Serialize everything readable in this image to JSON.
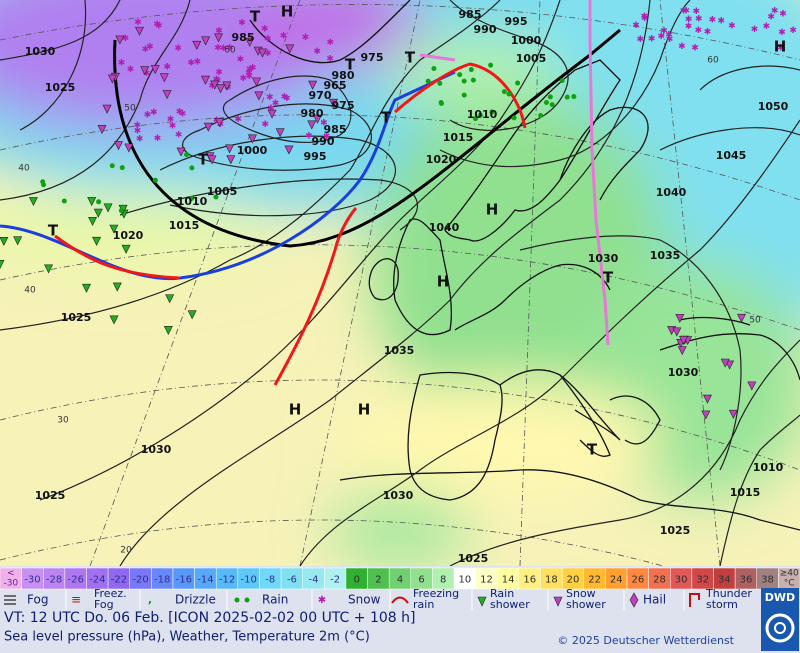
{
  "map": {
    "isobar_labels": [
      1030,
      1025,
      985,
      975,
      980,
      965,
      970,
      975,
      980,
      985,
      990,
      995,
      1000,
      1005,
      1010,
      1015,
      1020,
      1025,
      1030,
      1025,
      985,
      995,
      990,
      1000,
      1005,
      1010,
      1015,
      1020,
      1040,
      1035,
      1030,
      1025,
      1025,
      1015,
      1010,
      1030,
      1030,
      1035,
      1040,
      1045,
      1050
    ],
    "pressure_systems": [
      "T",
      "H",
      "H",
      "T",
      "T",
      "T",
      "T",
      "H",
      "H",
      "T",
      "T",
      "H",
      "H",
      "T"
    ],
    "grid_labels": [
      60,
      50,
      40,
      40,
      30,
      20,
      60,
      50
    ]
  },
  "scale": {
    "below_label": [
      "<",
      "-30"
    ],
    "values": [
      -30,
      -28,
      -26,
      -24,
      -22,
      -20,
      -18,
      -16,
      -14,
      -12,
      -10,
      -8,
      -6,
      -4,
      -2,
      0,
      2,
      4,
      6,
      8,
      10,
      12,
      14,
      16,
      18,
      20,
      22,
      24,
      26,
      28,
      30,
      32,
      34,
      36,
      38
    ],
    "colors": [
      "#c890f0",
      "#bc84f0",
      "#b078f0",
      "#a070f0",
      "#9068f0",
      "#7878f8",
      "#6888f8",
      "#5898f8",
      "#58a8f8",
      "#58b8f8",
      "#60c8f8",
      "#70d8f8",
      "#80e0f0",
      "#98e8f0",
      "#b0f0f0",
      "#30b030",
      "#50c050",
      "#70d070",
      "#90e090",
      "#b0f0b0",
      "#ffffff",
      "#ffffc8",
      "#ffffa0",
      "#fff080",
      "#ffe060",
      "#ffd040",
      "#ffb830",
      "#ffa030",
      "#ff8840",
      "#f07050",
      "#e05858",
      "#d04848",
      "#c04040",
      "#b06060",
      "#a08080"
    ],
    "above_label": [
      "≥40",
      "°C"
    ]
  },
  "legend": [
    [
      "Fog"
    ],
    [
      "Freez.",
      "Fog"
    ],
    [
      "Drizzle"
    ],
    [
      "Rain"
    ],
    [
      "Snow"
    ],
    [
      "Freezing",
      "rain"
    ],
    [
      "Rain",
      "shower"
    ],
    [
      "Snow",
      "shower"
    ],
    [
      "Hail"
    ],
    [
      "Thunder",
      "storm"
    ]
  ],
  "footer": {
    "valid_time": "VT: 12 UTC Do.  06 Feb. [ICON 2025-02-02  00 UTC + 108 h]",
    "description": "Sea level pressure (hPa), Weather, Temperature 2m (°C)",
    "copyright": "© 2025 Deutscher Wetterdienst",
    "logo": "DWD"
  }
}
